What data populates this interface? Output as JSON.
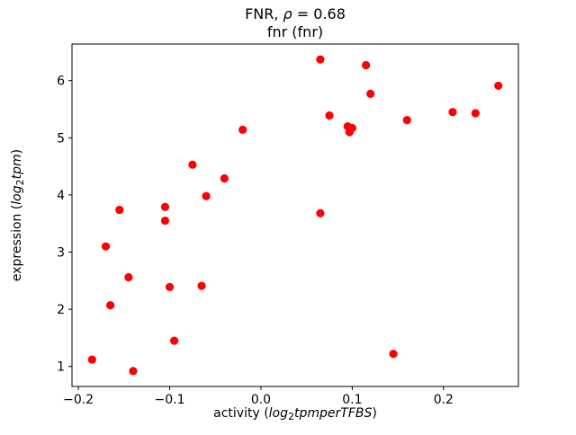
{
  "chart_data": {
    "type": "scatter",
    "title": "FNR, ρ = 0.68",
    "subtitle": "fnr (fnr)",
    "title_parts": [
      {
        "t": "FNR, "
      },
      {
        "t": "ρ",
        "i": true
      },
      {
        "t": " = 0.68"
      }
    ],
    "xlabel": "activity (log₂tpmperTFBS)",
    "ylabel": "expression (log₂tpm)",
    "xlabel_parts": [
      {
        "t": "activity ("
      },
      {
        "t": "log",
        "i": true
      },
      {
        "t": "2",
        "sub": true
      },
      {
        "t": "tpmperTFBS",
        "i": true
      },
      {
        "t": ")"
      }
    ],
    "ylabel_parts": [
      {
        "t": "expression ("
      },
      {
        "t": "log",
        "i": true
      },
      {
        "t": "2",
        "sub": true
      },
      {
        "t": "tpm",
        "i": true
      },
      {
        "t": ")"
      }
    ],
    "xlim": [
      -0.207,
      0.282
    ],
    "ylim": [
      0.65,
      6.64
    ],
    "xticks": [
      -0.2,
      -0.1,
      0.0,
      0.1,
      0.2
    ],
    "xtick_labels": [
      "−0.2",
      "−0.1",
      "0.0",
      "0.1",
      "0.2"
    ],
    "yticks": [
      1,
      2,
      3,
      4,
      5,
      6
    ],
    "ytick_labels": [
      "1",
      "2",
      "3",
      "4",
      "5",
      "6"
    ],
    "grid": false,
    "legend": "none",
    "marker_color": "#ff0000",
    "marker_radius": 4.6,
    "points": [
      [
        -0.185,
        1.12
      ],
      [
        -0.17,
        3.1
      ],
      [
        -0.165,
        2.07
      ],
      [
        -0.155,
        3.74
      ],
      [
        -0.145,
        2.56
      ],
      [
        -0.14,
        0.92
      ],
      [
        -0.105,
        3.79
      ],
      [
        -0.105,
        3.55
      ],
      [
        -0.1,
        2.39
      ],
      [
        -0.095,
        1.45
      ],
      [
        -0.075,
        4.53
      ],
      [
        -0.065,
        2.41
      ],
      [
        -0.06,
        3.98
      ],
      [
        -0.04,
        4.29
      ],
      [
        -0.02,
        5.14
      ],
      [
        0.065,
        6.37
      ],
      [
        0.065,
        3.68
      ],
      [
        0.075,
        5.39
      ],
      [
        0.095,
        5.2
      ],
      [
        0.097,
        5.1
      ],
      [
        0.1,
        5.17
      ],
      [
        0.115,
        6.27
      ],
      [
        0.12,
        5.77
      ],
      [
        0.145,
        1.22
      ],
      [
        0.16,
        5.31
      ],
      [
        0.21,
        5.45
      ],
      [
        0.235,
        5.43
      ],
      [
        0.26,
        5.91
      ]
    ]
  }
}
